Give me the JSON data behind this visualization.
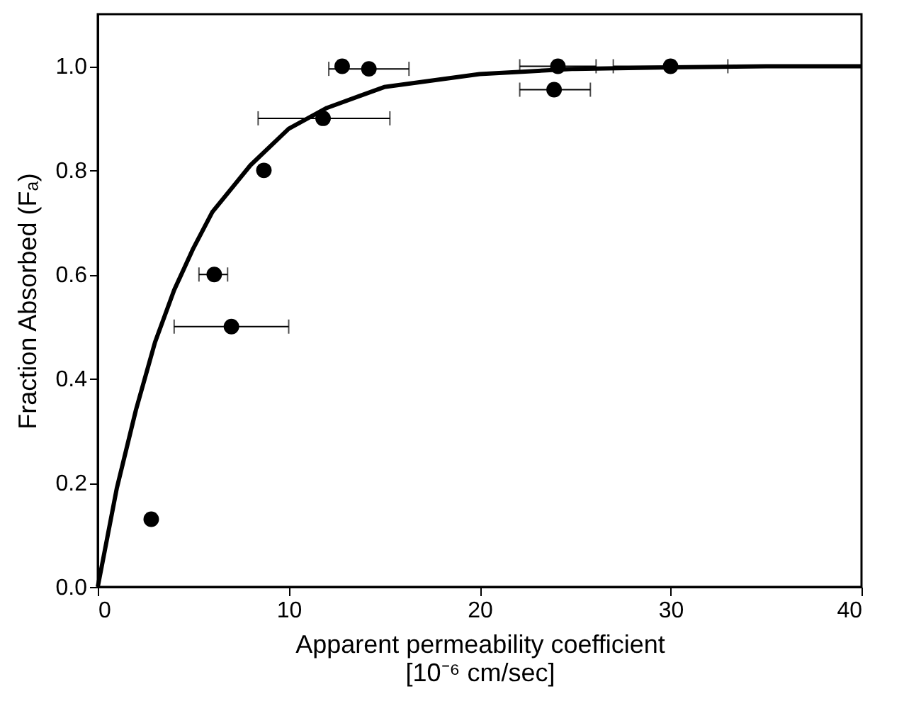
{
  "chart_data": {
    "type": "scatter",
    "xlabel": "Apparent permeability coefficient\n[10⁻⁶ cm/sec]",
    "ylabel": "Fraction Absorbed (Fₐ)",
    "xlim": [
      0,
      40
    ],
    "ylim": [
      0,
      1.1
    ],
    "xticks": [
      0,
      10,
      20,
      30,
      40
    ],
    "yticks": [
      {
        "value": 0,
        "label": "0.0"
      },
      0.2,
      0.4,
      0.6,
      0.8,
      {
        "value": 1,
        "label": "1.0"
      }
    ],
    "grid": false,
    "series": [
      {
        "color": "#000000",
        "marker": "circle",
        "x": [
          2.8,
          12.8,
          14.2,
          11.8,
          8.7,
          6.1,
          7.0,
          24.1,
          23.9,
          30.0
        ],
        "values": [
          0.13,
          1.0,
          0.995,
          0.9,
          0.8,
          0.6,
          0.5,
          1.0,
          0.955,
          1.0
        ],
        "xerrors": [
          null,
          null,
          [
            12.1,
            16.3
          ],
          [
            8.4,
            15.3
          ],
          null,
          [
            5.3,
            6.8
          ],
          [
            4.0,
            10.0
          ],
          [
            22.1,
            26.1
          ],
          [
            22.1,
            25.8
          ],
          [
            27.0,
            33.0
          ]
        ]
      },
      {
        "type": "line",
        "color": "#000000",
        "marker": "none",
        "line_style": "solid",
        "x": [
          0,
          1,
          2,
          3,
          4,
          5,
          6,
          8,
          10,
          12,
          15,
          20,
          25,
          30,
          35,
          40
        ],
        "values": [
          0,
          0.19,
          0.34,
          0.47,
          0.57,
          0.65,
          0.72,
          0.81,
          0.88,
          0.92,
          0.96,
          0.985,
          0.995,
          0.998,
          1.0,
          1.0
        ]
      }
    ]
  }
}
